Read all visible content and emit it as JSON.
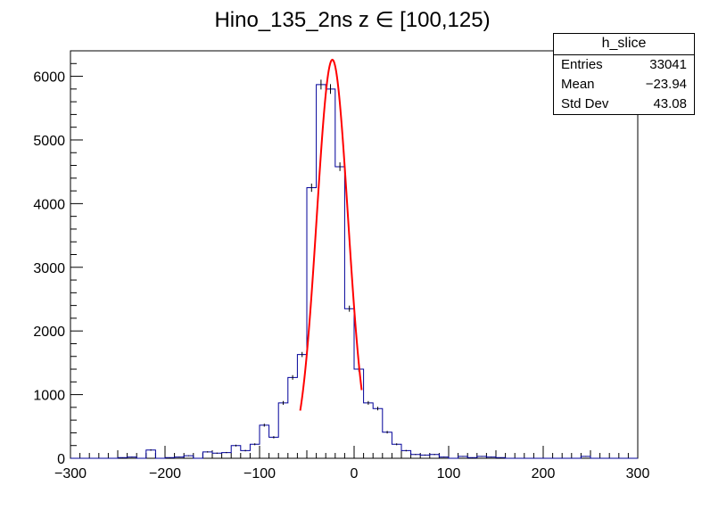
{
  "chart_data": {
    "type": "histogram",
    "title": "Hino_135_2ns z  ∈ [100,125)",
    "xlabel": "",
    "ylabel": "",
    "xlim": [
      -300,
      300
    ],
    "ylim": [
      0,
      6400
    ],
    "x_ticks": [
      -300,
      -200,
      -100,
      0,
      100,
      200,
      300
    ],
    "y_ticks": [
      0,
      1000,
      2000,
      3000,
      4000,
      5000,
      6000
    ],
    "grid": false,
    "bin_width": 10,
    "bin_edges_start": -300,
    "series": [
      {
        "values": [
          0,
          0,
          0,
          0,
          0,
          10,
          20,
          0,
          130,
          0,
          10,
          20,
          40,
          0,
          100,
          80,
          90,
          200,
          120,
          220,
          520,
          330,
          870,
          1270,
          1630,
          4250,
          5870,
          5800,
          4580,
          2350,
          1400,
          870,
          780,
          410,
          220,
          120,
          60,
          50,
          60,
          20,
          0,
          30,
          10,
          30,
          20,
          10,
          0,
          0,
          0,
          0,
          0,
          0,
          0,
          0,
          30,
          0,
          0,
          0,
          0,
          0
        ],
        "errors": [
          0,
          0,
          0,
          0,
          0,
          3,
          4,
          0,
          11,
          0,
          3,
          4,
          6,
          0,
          10,
          9,
          9,
          14,
          11,
          15,
          23,
          18,
          29,
          36,
          40,
          65,
          77,
          76,
          68,
          48,
          37,
          29,
          28,
          20,
          15,
          11,
          8,
          7,
          8,
          4,
          0,
          5,
          3,
          5,
          4,
          3,
          0,
          0,
          0,
          0,
          0,
          0,
          0,
          0,
          5,
          0,
          0,
          0,
          0,
          0
        ],
        "line_color": "#000099"
      },
      {
        "type": "line",
        "fit": "gaussian",
        "constant": 6260,
        "mean": -23,
        "sigma": 16.5,
        "x_range": [
          -57,
          8
        ],
        "line_color": "#ff0000"
      }
    ]
  },
  "stats": {
    "title": "h_slice",
    "rows": [
      {
        "label": "Entries",
        "value": "33041"
      },
      {
        "label": "Mean",
        "value": "−23.94"
      },
      {
        "label": "Std Dev",
        "value": "43.08"
      }
    ]
  }
}
